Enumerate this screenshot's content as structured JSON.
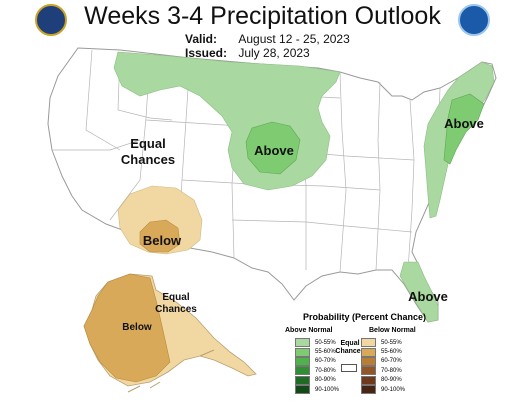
{
  "title": "Weeks 3-4 Precipitation Outlook",
  "valid_label": "Valid:",
  "valid_value": "August 12 - 25, 2023",
  "issued_label": "Issued:",
  "issued_value": "July 28, 2023",
  "map_labels": {
    "equal_line1": "Equal",
    "equal_line2": "Chances",
    "above_central": "Above",
    "above_northeast": "Above",
    "above_florida": "Above",
    "below_southwest": "Below",
    "alaska_below": "Below",
    "alaska_equal_line1": "Equal",
    "alaska_equal_line2": "Chances"
  },
  "legend": {
    "title": "Probability (Percent Chance)",
    "above_header": "Above Normal",
    "below_header": "Below Normal",
    "equal_label_line1": "Equal",
    "equal_label_line2": "Chances",
    "above": [
      {
        "label": "50-55%",
        "color": "#a9d8a0"
      },
      {
        "label": "55-60%",
        "color": "#7fcb72"
      },
      {
        "label": "60-70%",
        "color": "#4fb24a"
      },
      {
        "label": "70-80%",
        "color": "#2f8f32"
      },
      {
        "label": "80-90%",
        "color": "#1e6b23"
      },
      {
        "label": "90-100%",
        "color": "#124a17"
      }
    ],
    "below": [
      {
        "label": "50-55%",
        "color": "#f1d8a3"
      },
      {
        "label": "55-60%",
        "color": "#d9a95a"
      },
      {
        "label": "60-70%",
        "color": "#b97d34"
      },
      {
        "label": "70-80%",
        "color": "#935626"
      },
      {
        "label": "80-90%",
        "color": "#6e3a1b"
      },
      {
        "label": "90-100%",
        "color": "#4a2412"
      }
    ]
  },
  "colors": {
    "above_50_55": "#a9d8a0",
    "above_55_60": "#7fcb72",
    "below_50_55": "#f1d8a3",
    "below_55_60": "#d9a95a",
    "boundary": "#9a9a9a",
    "land": "#ffffff"
  }
}
